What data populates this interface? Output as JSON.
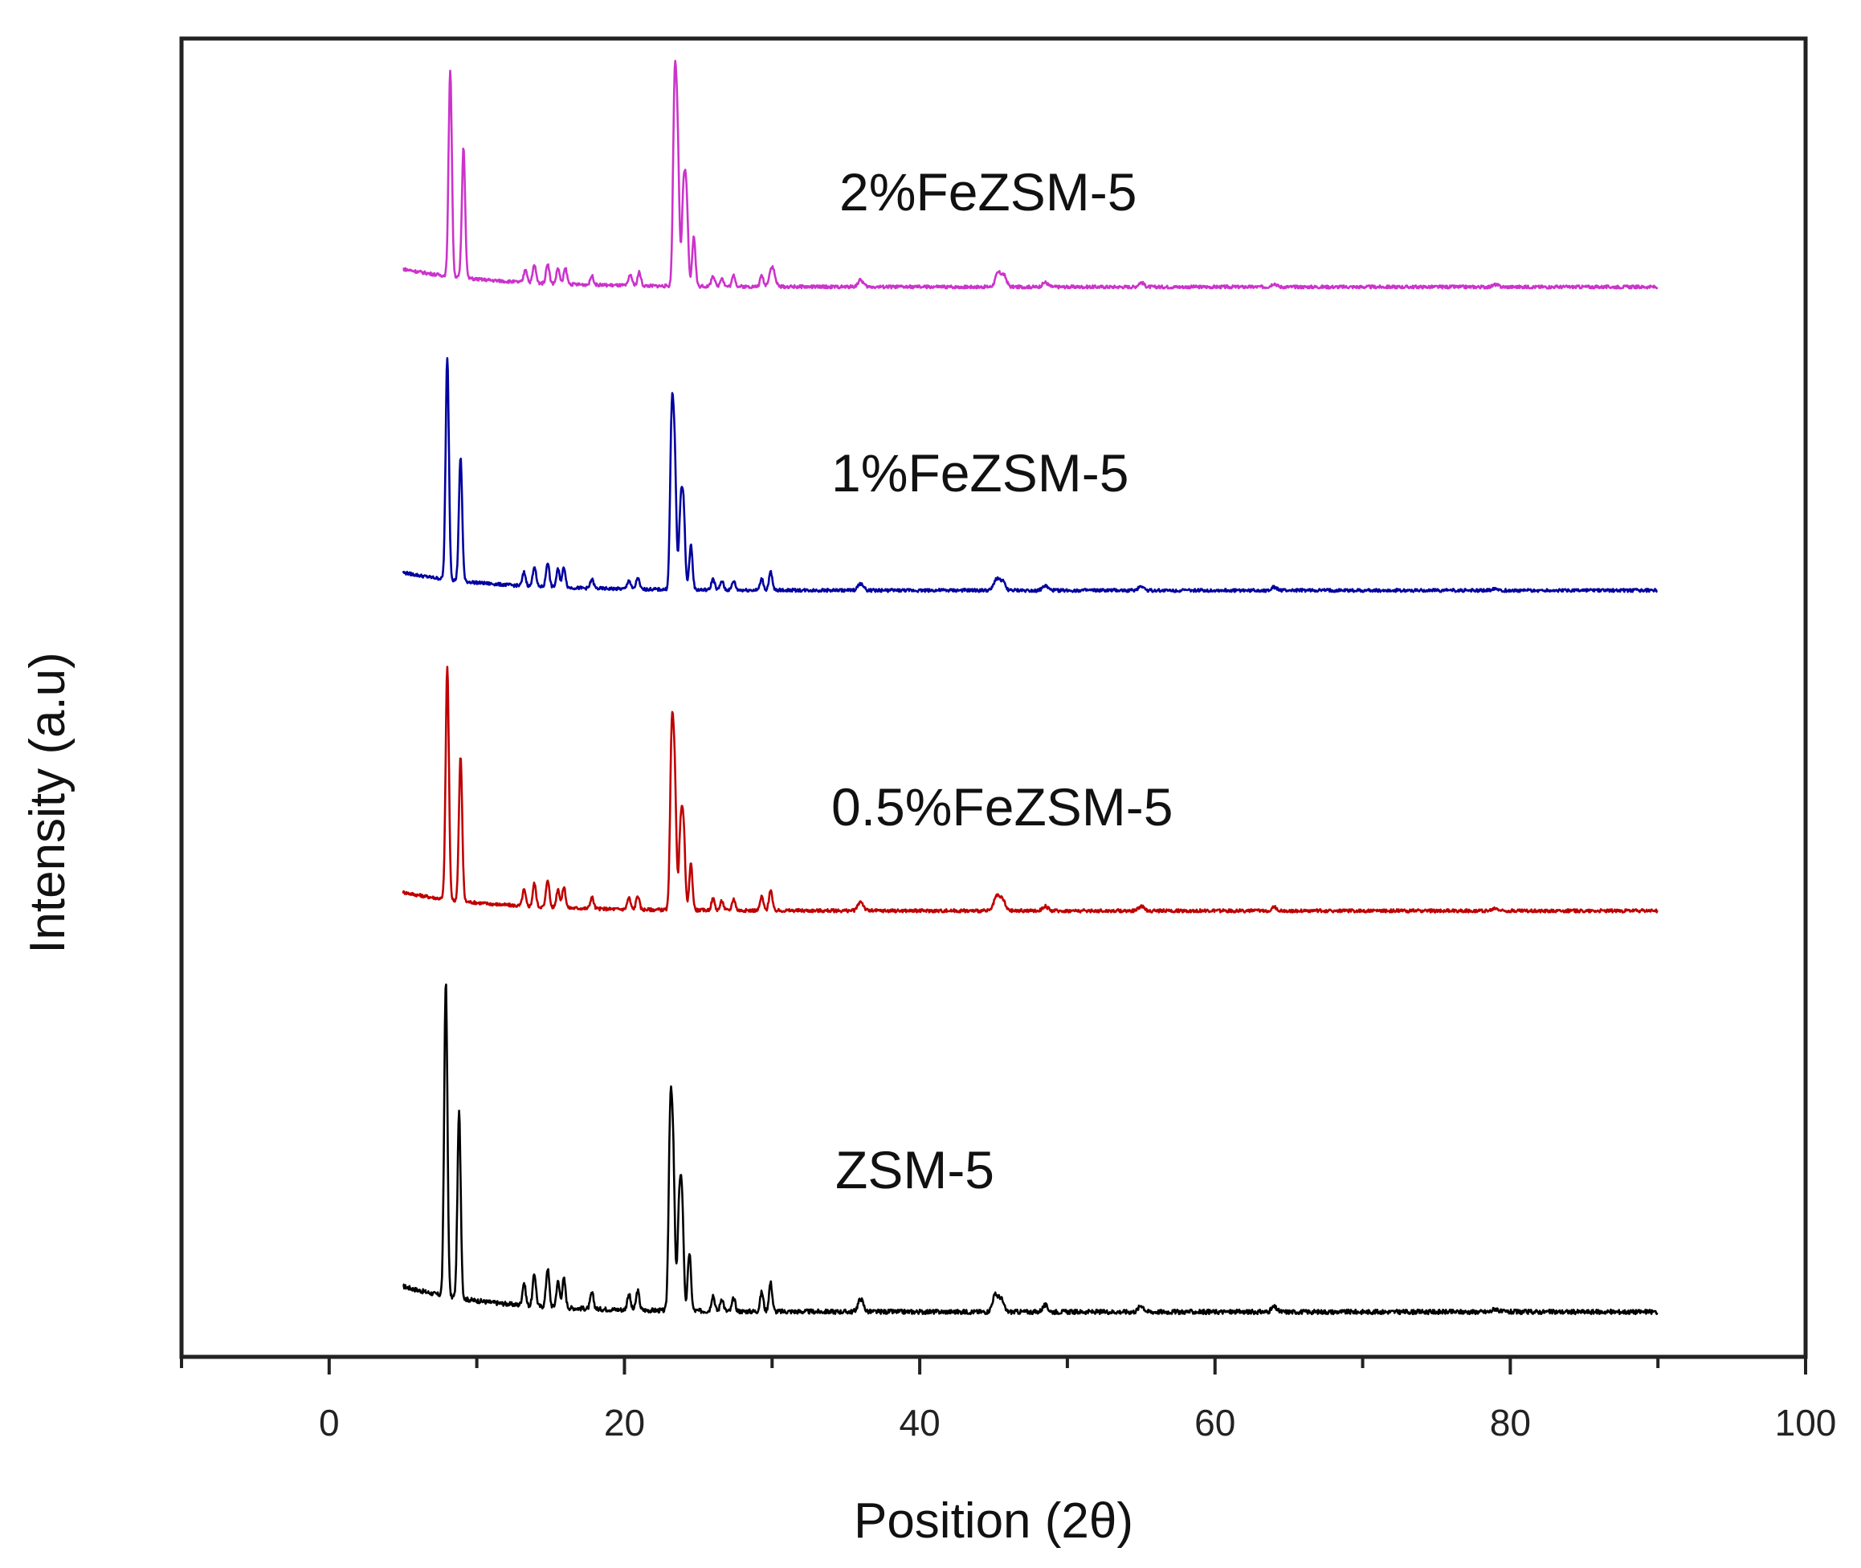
{
  "chart_data": {
    "type": "line",
    "title": "",
    "xlabel": "Position (2θ)",
    "ylabel": "Intensity (a.u)",
    "xlim": [
      -10,
      100
    ],
    "xticks": [
      0,
      20,
      40,
      60,
      80,
      100
    ],
    "x_minor_step": 10,
    "yticks": [],
    "grid": false,
    "legend": "none",
    "x_range": [
      5,
      90
    ],
    "series": [
      {
        "name": "ZSM-5",
        "color": "#000000",
        "offset": 0,
        "peaks": [
          [
            7.9,
            98
          ],
          [
            8.8,
            58
          ],
          [
            13.2,
            7
          ],
          [
            13.9,
            10
          ],
          [
            14.8,
            12
          ],
          [
            15.5,
            8
          ],
          [
            15.9,
            9
          ],
          [
            17.8,
            5
          ],
          [
            20.3,
            5
          ],
          [
            20.9,
            6
          ],
          [
            23.1,
            57
          ],
          [
            23.3,
            45
          ],
          [
            23.7,
            30
          ],
          [
            23.9,
            33
          ],
          [
            24.4,
            18
          ],
          [
            26.0,
            5
          ],
          [
            26.6,
            4
          ],
          [
            27.4,
            4
          ],
          [
            29.3,
            6
          ],
          [
            29.9,
            9
          ],
          [
            36.0,
            4
          ],
          [
            45.1,
            5
          ],
          [
            45.5,
            4
          ],
          [
            48.5,
            2
          ],
          [
            55.0,
            2
          ],
          [
            64.0,
            1.5
          ],
          [
            79.0,
            1
          ]
        ]
      },
      {
        "name": "0.5%FeZSM-5",
        "color": "#c00000",
        "offset": 1,
        "peaks": [
          [
            8.0,
            100
          ],
          [
            8.9,
            62
          ],
          [
            13.2,
            7
          ],
          [
            13.9,
            10
          ],
          [
            14.8,
            12
          ],
          [
            15.5,
            8
          ],
          [
            15.9,
            9
          ],
          [
            17.8,
            5
          ],
          [
            20.3,
            5
          ],
          [
            20.9,
            6
          ],
          [
            23.2,
            70
          ],
          [
            23.4,
            55
          ],
          [
            23.8,
            33
          ],
          [
            24.0,
            34
          ],
          [
            24.5,
            20
          ],
          [
            26.0,
            5
          ],
          [
            26.6,
            4
          ],
          [
            27.4,
            5
          ],
          [
            29.3,
            6
          ],
          [
            29.9,
            9
          ],
          [
            36.0,
            4
          ],
          [
            45.2,
            6
          ],
          [
            45.6,
            5
          ],
          [
            48.5,
            2
          ],
          [
            55.0,
            2
          ],
          [
            64.0,
            1.5
          ],
          [
            79.0,
            1
          ]
        ]
      },
      {
        "name": "1%FeZSM-5",
        "color": "#0000a0",
        "offset": 2,
        "peaks": [
          [
            8.0,
            99
          ],
          [
            8.9,
            55
          ],
          [
            13.2,
            6
          ],
          [
            13.9,
            9
          ],
          [
            14.8,
            11
          ],
          [
            15.5,
            8
          ],
          [
            15.9,
            9
          ],
          [
            17.8,
            4
          ],
          [
            20.3,
            4
          ],
          [
            20.9,
            5
          ],
          [
            23.2,
            72
          ],
          [
            23.4,
            56
          ],
          [
            23.8,
            34
          ],
          [
            24.0,
            35
          ],
          [
            24.5,
            20
          ],
          [
            26.0,
            5
          ],
          [
            26.6,
            4
          ],
          [
            27.4,
            4
          ],
          [
            29.3,
            5
          ],
          [
            29.9,
            8
          ],
          [
            36.0,
            3
          ],
          [
            45.2,
            5
          ],
          [
            45.6,
            4
          ],
          [
            48.5,
            2
          ],
          [
            55.0,
            2
          ],
          [
            64.0,
            1.5
          ],
          [
            79.0,
            1
          ]
        ]
      },
      {
        "name": "2%FeZSM-5",
        "color": "#cc33cc",
        "offset": 3,
        "peaks": [
          [
            8.2,
            92
          ],
          [
            9.1,
            58
          ],
          [
            13.3,
            6
          ],
          [
            13.9,
            8
          ],
          [
            14.8,
            9
          ],
          [
            15.5,
            7
          ],
          [
            16.0,
            7
          ],
          [
            17.8,
            4
          ],
          [
            20.4,
            5
          ],
          [
            21.0,
            6
          ],
          [
            23.4,
            85
          ],
          [
            23.6,
            60
          ],
          [
            24.0,
            40
          ],
          [
            24.2,
            38
          ],
          [
            24.7,
            22
          ],
          [
            26.0,
            5
          ],
          [
            26.6,
            4
          ],
          [
            27.4,
            5
          ],
          [
            29.3,
            5
          ],
          [
            30.0,
            9
          ],
          [
            36.0,
            3
          ],
          [
            45.3,
            6
          ],
          [
            45.7,
            5
          ],
          [
            48.5,
            2
          ],
          [
            55.0,
            2
          ],
          [
            64.0,
            1.5
          ],
          [
            79.0,
            1
          ]
        ]
      }
    ]
  }
}
